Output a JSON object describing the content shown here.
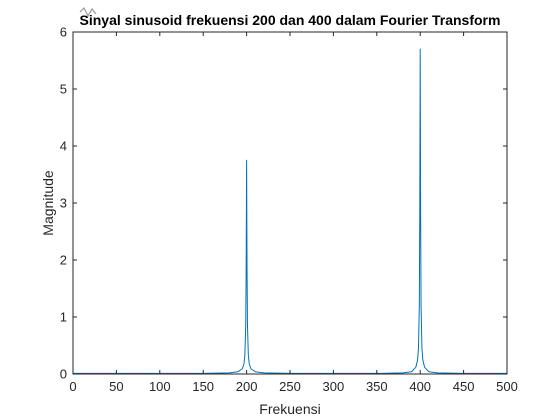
{
  "window": {
    "icon_name": "matlab-figure-icon"
  },
  "chart_data": {
    "type": "line",
    "title": "Sinyal sinusoid frekuensi 200 dan 400 dalam Fourier Transform",
    "xlabel": "Frekuensi",
    "ylabel": "Magnitude",
    "xlim": [
      0,
      500
    ],
    "ylim": [
      0,
      6
    ],
    "xticks": [
      0,
      50,
      100,
      150,
      200,
      250,
      300,
      350,
      400,
      450,
      500
    ],
    "yticks": [
      0,
      1,
      2,
      3,
      4,
      5,
      6
    ],
    "grid": false,
    "box": true,
    "line_color": "#0072BD",
    "axis_color": "#262626",
    "series": [
      {
        "x": [
          0,
          50,
          100,
          150,
          180,
          190,
          195,
          197,
          198,
          199,
          199.5,
          200,
          200.5,
          201,
          202,
          203,
          205,
          210,
          220,
          250,
          300,
          350,
          380,
          390,
          395,
          397,
          398,
          399,
          399.5,
          400,
          400.5,
          401,
          402,
          403,
          405,
          410,
          420,
          450,
          500
        ],
        "values": [
          0.01,
          0.01,
          0.01,
          0.01,
          0.02,
          0.04,
          0.09,
          0.18,
          0.33,
          0.85,
          1.9,
          3.75,
          1.9,
          0.85,
          0.33,
          0.18,
          0.09,
          0.04,
          0.02,
          0.01,
          0.01,
          0.01,
          0.02,
          0.04,
          0.12,
          0.25,
          0.45,
          1.2,
          2.8,
          5.7,
          2.8,
          1.2,
          0.45,
          0.25,
          0.12,
          0.04,
          0.02,
          0.01,
          0.01
        ]
      }
    ]
  }
}
